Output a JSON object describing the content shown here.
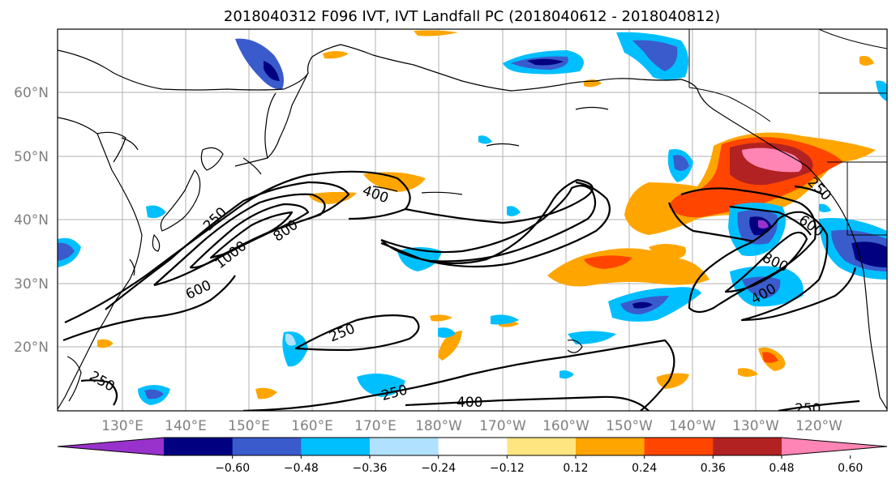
{
  "title": "2018040312 F096 IVT, IVT Landfall PC (2018040612 - 2018040812)",
  "lat_labels": [
    "60°N",
    "50°N",
    "40°N",
    "30°N",
    "20°N"
  ],
  "lon_labels": [
    "130°E",
    "140°E",
    "150°E",
    "160°E",
    "170°E",
    "180°W",
    "170°W",
    "160°W",
    "150°W",
    "140°W",
    "130°W",
    "120°W"
  ],
  "colorbar": {
    "ticks": [
      "−0.60",
      "−0.48",
      "−0.36",
      "−0.24",
      "−0.12",
      "0.12",
      "0.24",
      "0.36",
      "0.48",
      "0.60"
    ],
    "colors": [
      "#9932cc",
      "#000080",
      "#3a5bcc",
      "#00bfff",
      "#b0e2ff",
      "#ffffff",
      "#ffe57f",
      "#ffa500",
      "#ff4500",
      "#b22222",
      "#ff85b5"
    ]
  },
  "contour_labels": {
    "c250_left": "250",
    "c1000": "1000",
    "c800_left": "800",
    "c600_left": "600",
    "c400_top": "400",
    "c250_mid": "250",
    "c250_lowleft": "250",
    "c250_low": "250",
    "c400_low": "400",
    "c250_br": "250",
    "c250_right": "250",
    "c600_right": "600",
    "c800_right": "800",
    "c400_right": "400"
  }
}
